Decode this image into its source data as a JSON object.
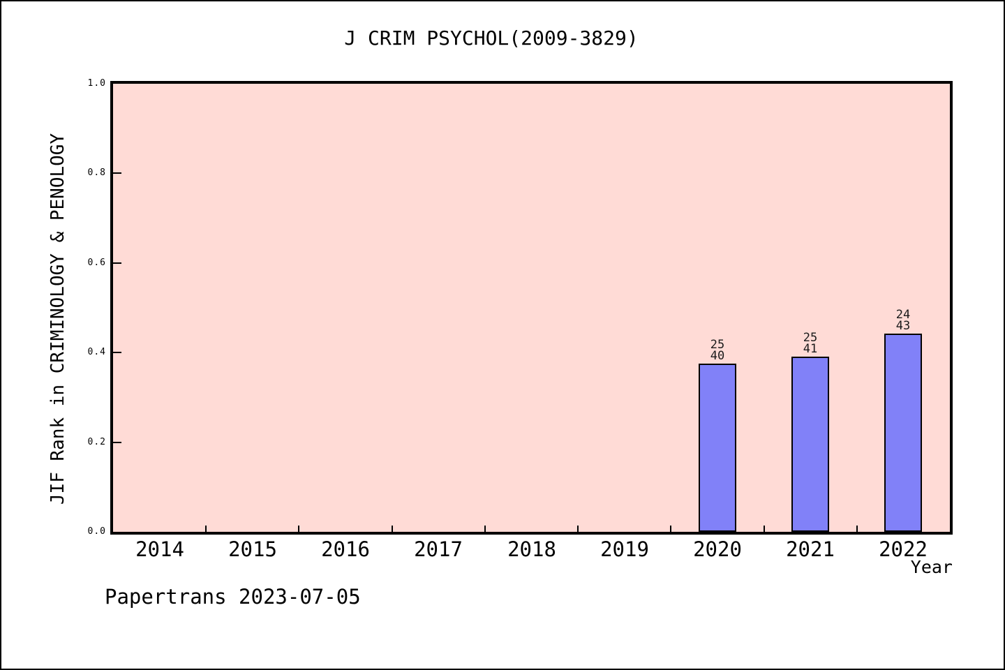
{
  "chart_data": {
    "type": "bar",
    "title": "J CRIM PSYCHOL(2009-3829)",
    "xlabel": "Year",
    "ylabel": "JIF Rank in CRIMINOLOGY & PENOLOGY",
    "categories": [
      "2014",
      "2015",
      "2016",
      "2017",
      "2018",
      "2019",
      "2020",
      "2021",
      "2022"
    ],
    "bars": [
      {
        "year": "2020",
        "rank": 25,
        "total": 40,
        "value": 0.375
      },
      {
        "year": "2021",
        "rank": 25,
        "total": 41,
        "value": 0.3902
      },
      {
        "year": "2022",
        "rank": 24,
        "total": 43,
        "value": 0.4419
      }
    ],
    "ylim": [
      0.0,
      1.0
    ],
    "yticks": [
      "0.0",
      "0.2",
      "0.4",
      "0.6",
      "0.8",
      "1.0"
    ],
    "grid": false,
    "legend_position": "none",
    "plot_bg_color": "#ffdbd6",
    "bar_fill_color": "#8181f8",
    "bar_edge_color": "#000000",
    "axis_color": "#000000"
  },
  "footer": {
    "text": "Papertrans 2023-07-05"
  }
}
